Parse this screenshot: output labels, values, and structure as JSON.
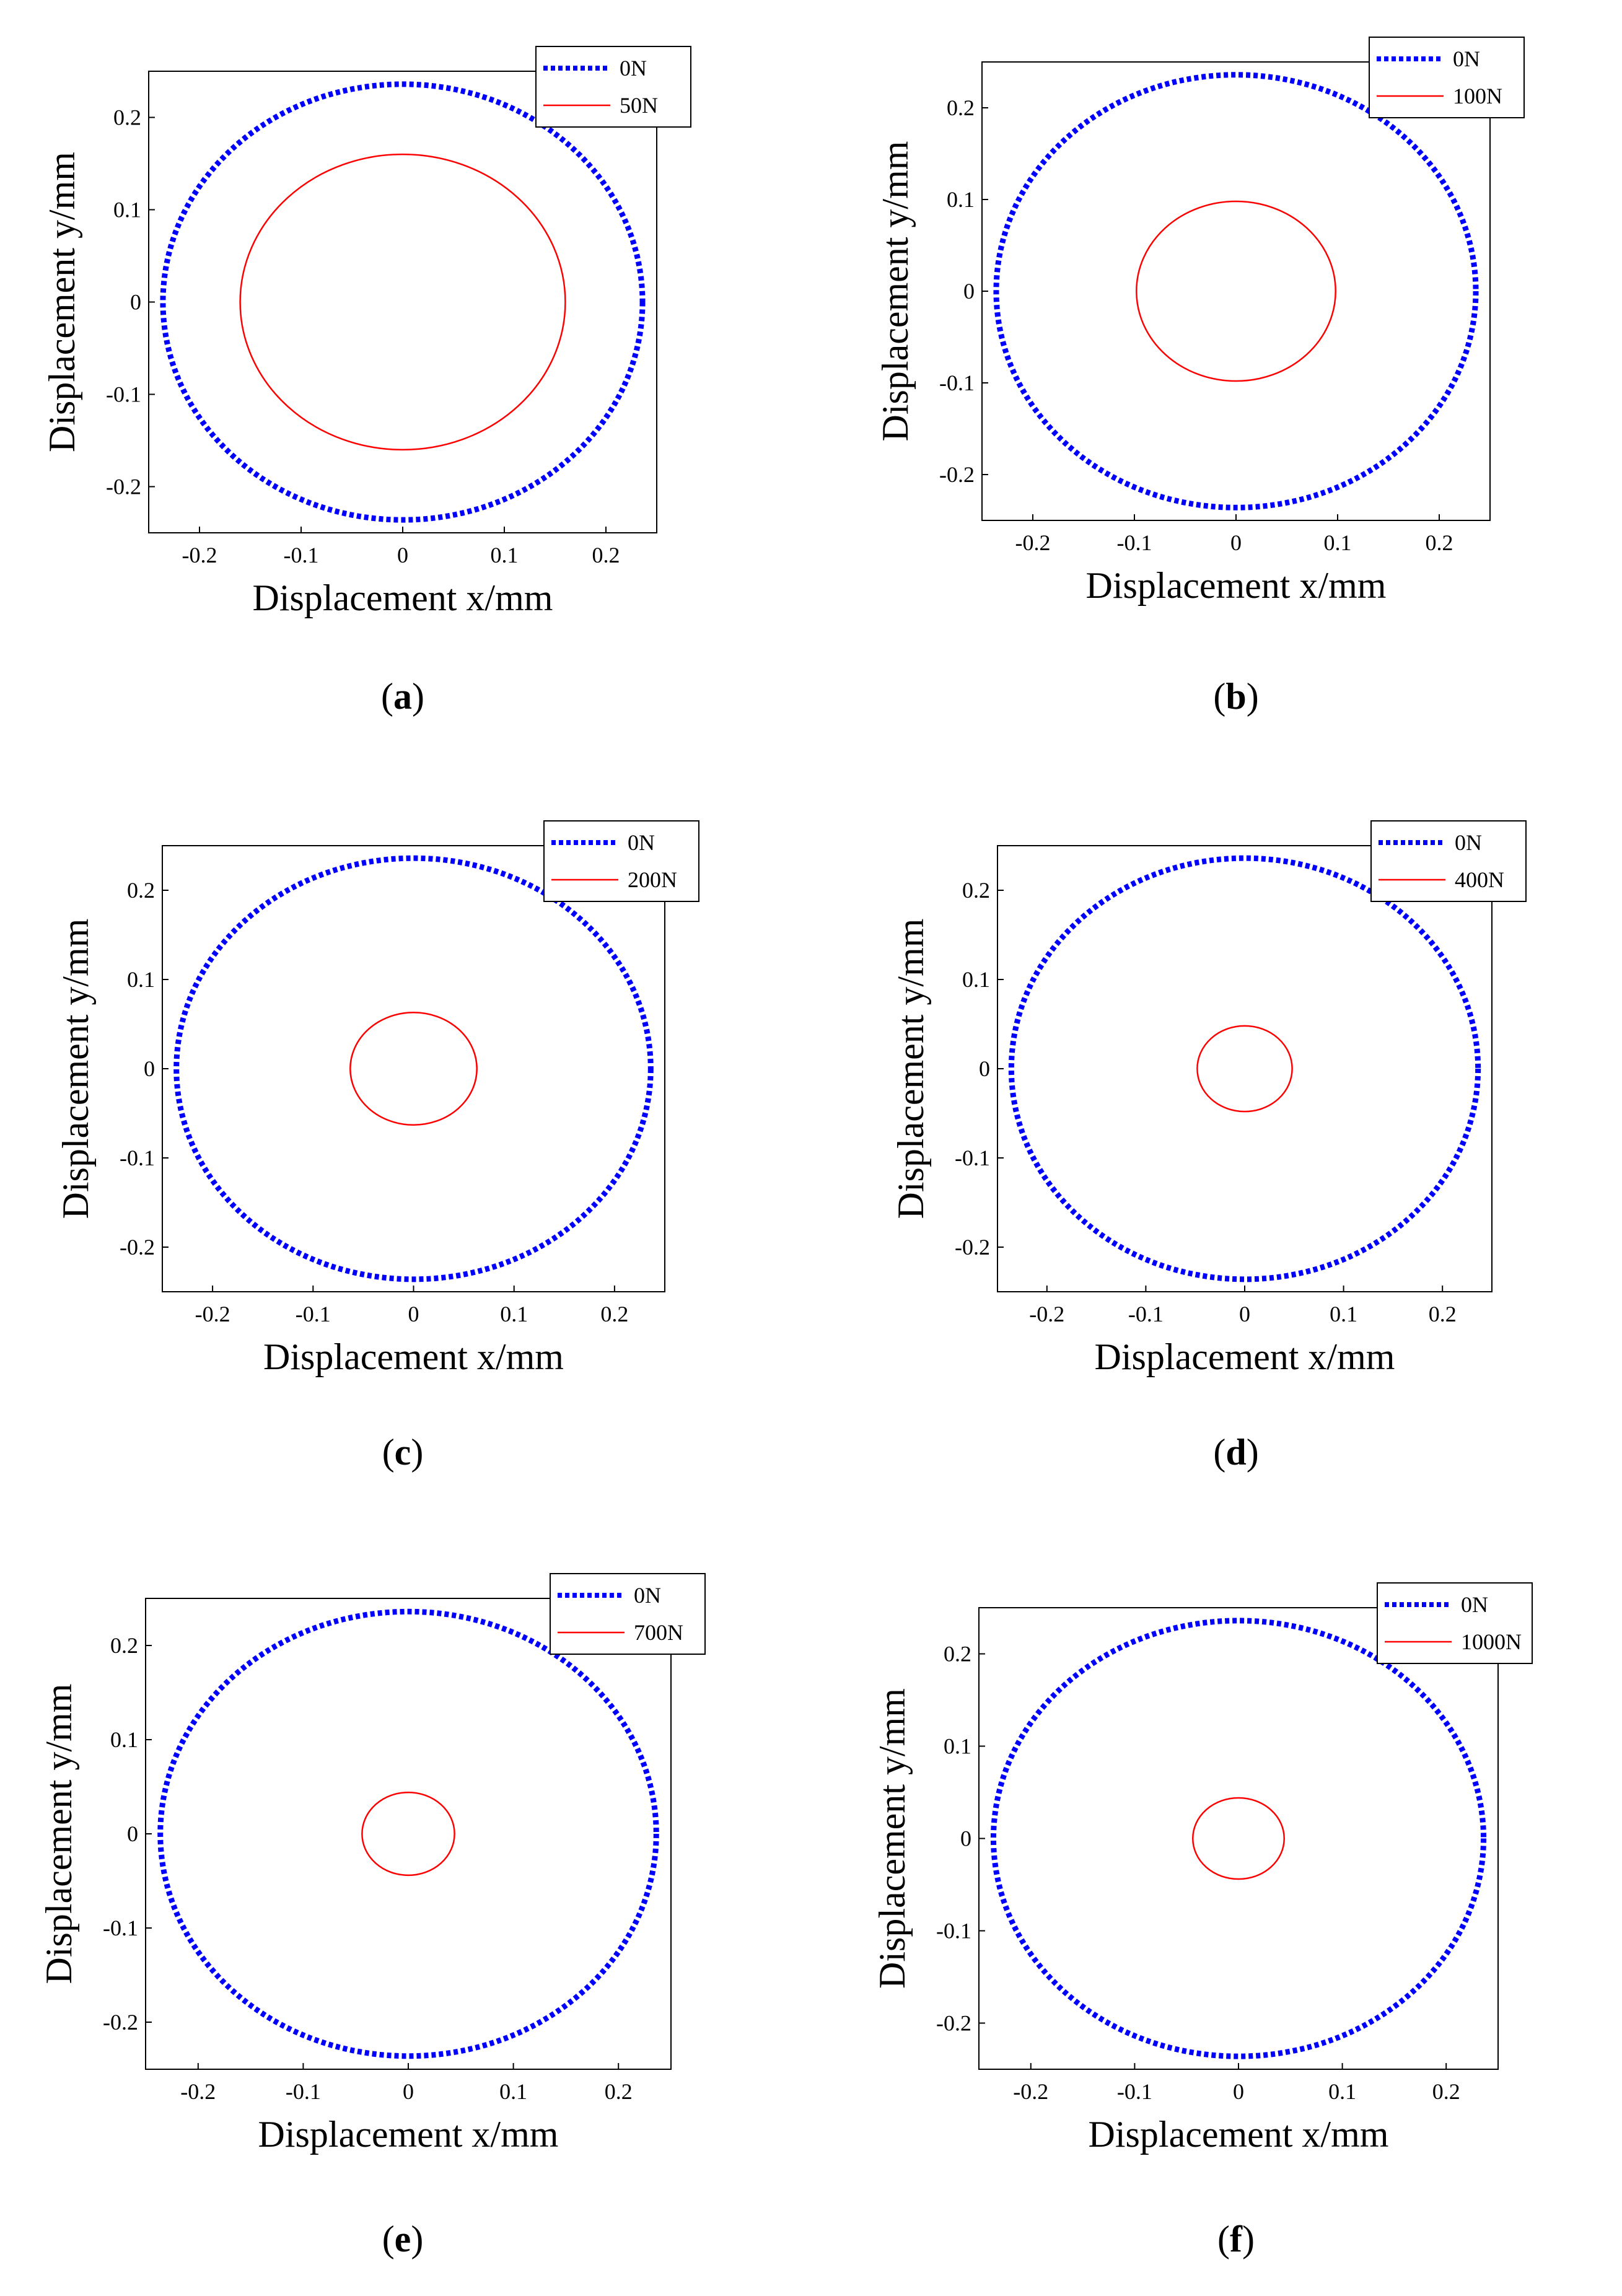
{
  "chart_data": [
    {
      "type": "line",
      "panel": "a",
      "caption_letter": "a",
      "xlabel": "Displacement x/mm",
      "ylabel": "Displacement y/mm",
      "xlim": [
        -0.25,
        0.25
      ],
      "ylim": [
        -0.25,
        0.25
      ],
      "xticks": [
        -0.2,
        -0.1,
        0,
        0.1,
        0.2
      ],
      "yticks": [
        -0.2,
        -0.1,
        0,
        0.1,
        0.2
      ],
      "legend_position": "top-right",
      "series": [
        {
          "name": "0N",
          "shape": "circle",
          "center": [
            0,
            0
          ],
          "radius": 0.236,
          "color": "#0000ff",
          "style": "dotted"
        },
        {
          "name": "50N",
          "shape": "circle",
          "center": [
            0,
            0
          ],
          "radius": 0.16,
          "color": "#ff0000",
          "style": "solid"
        }
      ]
    },
    {
      "type": "line",
      "panel": "b",
      "caption_letter": "b",
      "xlabel": "Displacement x/mm",
      "ylabel": "Displacement y/mm",
      "xlim": [
        -0.25,
        0.25
      ],
      "ylim": [
        -0.25,
        0.25
      ],
      "xticks": [
        -0.2,
        -0.1,
        0,
        0.1,
        0.2
      ],
      "yticks": [
        -0.2,
        -0.1,
        0,
        0.1,
        0.2
      ],
      "legend_position": "top-right",
      "series": [
        {
          "name": "0N",
          "shape": "circle",
          "center": [
            0,
            0
          ],
          "radius": 0.236,
          "color": "#0000ff",
          "style": "dotted"
        },
        {
          "name": "100N",
          "shape": "circle",
          "center": [
            0,
            0
          ],
          "radius": 0.098,
          "color": "#ff0000",
          "style": "solid"
        }
      ]
    },
    {
      "type": "line",
      "panel": "c",
      "caption_letter": "c",
      "xlabel": "Displacement x/mm",
      "ylabel": "Displacement y/mm",
      "xlim": [
        -0.25,
        0.25
      ],
      "ylim": [
        -0.25,
        0.25
      ],
      "xticks": [
        -0.2,
        -0.1,
        0,
        0.1,
        0.2
      ],
      "yticks": [
        -0.2,
        -0.1,
        0,
        0.1,
        0.2
      ],
      "legend_position": "top-right",
      "series": [
        {
          "name": "0N",
          "shape": "circle",
          "center": [
            0,
            0
          ],
          "radius": 0.236,
          "color": "#0000ff",
          "style": "dotted"
        },
        {
          "name": "200N",
          "shape": "circle",
          "center": [
            0,
            0
          ],
          "radius": 0.063,
          "color": "#ff0000",
          "style": "solid"
        }
      ]
    },
    {
      "type": "line",
      "panel": "d",
      "caption_letter": "d",
      "xlabel": "Displacement x/mm",
      "ylabel": "Displacement y/mm",
      "xlim": [
        -0.25,
        0.25
      ],
      "ylim": [
        -0.25,
        0.25
      ],
      "xticks": [
        -0.2,
        -0.1,
        0,
        0.1,
        0.2
      ],
      "yticks": [
        -0.2,
        -0.1,
        0,
        0.1,
        0.2
      ],
      "legend_position": "top-right",
      "series": [
        {
          "name": "0N",
          "shape": "circle",
          "center": [
            0,
            0
          ],
          "radius": 0.236,
          "color": "#0000ff",
          "style": "dotted"
        },
        {
          "name": "400N",
          "shape": "circle",
          "center": [
            0,
            0
          ],
          "radius": 0.048,
          "color": "#ff0000",
          "style": "solid"
        }
      ]
    },
    {
      "type": "line",
      "panel": "e",
      "caption_letter": "e",
      "xlabel": "Displacement x/mm",
      "ylabel": "Displacement y/mm",
      "xlim": [
        -0.25,
        0.25
      ],
      "ylim": [
        -0.25,
        0.25
      ],
      "xticks": [
        -0.2,
        -0.1,
        0,
        0.1,
        0.2
      ],
      "yticks": [
        -0.2,
        -0.1,
        0,
        0.1,
        0.2
      ],
      "legend_position": "top-right",
      "series": [
        {
          "name": "0N",
          "shape": "circle",
          "center": [
            0,
            0
          ],
          "radius": 0.236,
          "color": "#0000ff",
          "style": "dotted"
        },
        {
          "name": "700N",
          "shape": "circle",
          "center": [
            0,
            0
          ],
          "radius": 0.044,
          "color": "#ff0000",
          "style": "solid"
        }
      ]
    },
    {
      "type": "line",
      "panel": "f",
      "caption_letter": "f",
      "xlabel": "Displacement x/mm",
      "ylabel": "Displacement y/mm",
      "xlim": [
        -0.25,
        0.25
      ],
      "ylim": [
        -0.25,
        0.25
      ],
      "xticks": [
        -0.2,
        -0.1,
        0,
        0.1,
        0.2
      ],
      "yticks": [
        -0.2,
        -0.1,
        0,
        0.1,
        0.2
      ],
      "legend_position": "top-right",
      "series": [
        {
          "name": "0N",
          "shape": "circle",
          "center": [
            0,
            0
          ],
          "radius": 0.236,
          "color": "#0000ff",
          "style": "dotted"
        },
        {
          "name": "1000N",
          "shape": "circle",
          "center": [
            0,
            0
          ],
          "radius": 0.044,
          "color": "#ff0000",
          "style": "solid"
        }
      ]
    }
  ]
}
